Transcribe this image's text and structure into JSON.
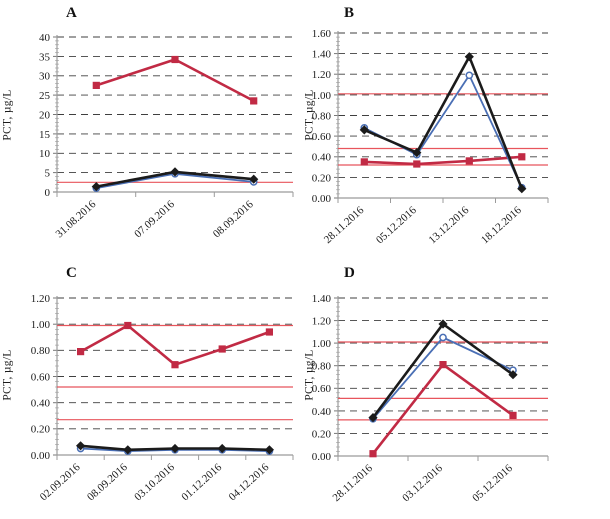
{
  "colors": {
    "series_black": "#1b1b1b",
    "series_blue": "#4a6fb5",
    "series_red": "#c12a44",
    "reference_line": "#e8555c",
    "gridline": "#3f3f3f",
    "axis": "#9b9b9b"
  },
  "chart_data": [
    {
      "type": "line",
      "panel_label": "A",
      "ylabel": "PCT, µg/L",
      "ylim": [
        0,
        40
      ],
      "ytick_step": 5,
      "ytick_decimals": 0,
      "grid": "dashed-horizontal",
      "legend": "none",
      "categories": [
        "31.08.2016",
        "07.09.2016",
        "08.09.2016"
      ],
      "series": [
        {
          "name": "black-diamond",
          "marker": "diamond",
          "color": "#1b1b1b",
          "values": [
            1.4,
            5.2,
            3.3
          ]
        },
        {
          "name": "blue-open-circle",
          "marker": "open-circle",
          "color": "#4a6fb5",
          "values": [
            1.0,
            4.7,
            2.6
          ]
        },
        {
          "name": "red-square",
          "marker": "square",
          "color": "#c12a44",
          "values": [
            27.5,
            34.2,
            23.5
          ]
        }
      ],
      "ref_lines": {
        "color": "#e8555c",
        "values": [
          2.5
        ]
      }
    },
    {
      "type": "line",
      "panel_label": "B",
      "ylabel": "PCT, µg/L",
      "ylim": [
        0,
        1.6
      ],
      "ytick_step": 0.2,
      "ytick_decimals": 2,
      "grid": "dashed-horizontal",
      "legend": "none",
      "categories": [
        "28.11.2016",
        "05.12.2016",
        "13.12.2016",
        "18.12.2016"
      ],
      "series": [
        {
          "name": "black-diamond",
          "marker": "diamond",
          "color": "#1b1b1b",
          "values": [
            0.66,
            0.44,
            1.37,
            0.09
          ]
        },
        {
          "name": "blue-open-circle",
          "marker": "open-circle",
          "color": "#4a6fb5",
          "values": [
            0.68,
            0.42,
            1.19,
            0.1
          ]
        },
        {
          "name": "red-square",
          "marker": "square",
          "color": "#c12a44",
          "values": [
            0.35,
            0.33,
            0.36,
            0.4
          ]
        }
      ],
      "ref_lines": {
        "color": "#e8555c",
        "values": [
          1.01,
          0.48,
          0.32
        ]
      }
    },
    {
      "type": "line",
      "panel_label": "C",
      "ylabel": "PCT, µg/L",
      "ylim": [
        0,
        1.2
      ],
      "ytick_step": 0.2,
      "ytick_decimals": 2,
      "grid": "dashed-horizontal",
      "legend": "none",
      "categories": [
        "02.09.2016",
        "08.09.2016",
        "03.10.2016",
        "01.12.2016",
        "04.12.2016"
      ],
      "series": [
        {
          "name": "black-diamond",
          "marker": "diamond",
          "color": "#1b1b1b",
          "values": [
            0.07,
            0.04,
            0.05,
            0.05,
            0.04
          ]
        },
        {
          "name": "blue-open-circle",
          "marker": "open-circle",
          "color": "#4a6fb5",
          "values": [
            0.05,
            0.03,
            0.04,
            0.04,
            0.03
          ]
        },
        {
          "name": "red-square",
          "marker": "square",
          "color": "#c12a44",
          "values": [
            0.79,
            0.99,
            0.69,
            0.81,
            0.94
          ]
        }
      ],
      "ref_lines": {
        "color": "#e8555c",
        "values": [
          0.99,
          0.52,
          0.27
        ]
      }
    },
    {
      "type": "line",
      "panel_label": "D",
      "ylabel": "PCT, µg/L",
      "ylim": [
        0,
        1.4
      ],
      "ytick_step": 0.2,
      "ytick_decimals": 2,
      "grid": "dashed-horizontal",
      "legend": "none",
      "categories": [
        "28.11.2016",
        "03.12.2016",
        "05.12.2016"
      ],
      "series": [
        {
          "name": "black-diamond",
          "marker": "diamond",
          "color": "#1b1b1b",
          "values": [
            0.34,
            1.17,
            0.72
          ]
        },
        {
          "name": "blue-open-circle",
          "marker": "open-circle",
          "color": "#4a6fb5",
          "values": [
            0.33,
            1.05,
            0.76
          ]
        },
        {
          "name": "red-square",
          "marker": "square",
          "color": "#c12a44",
          "values": [
            0.02,
            0.81,
            0.36
          ]
        }
      ],
      "ref_lines": {
        "color": "#e8555c",
        "values": [
          1.01,
          0.51,
          0.32
        ]
      }
    }
  ]
}
